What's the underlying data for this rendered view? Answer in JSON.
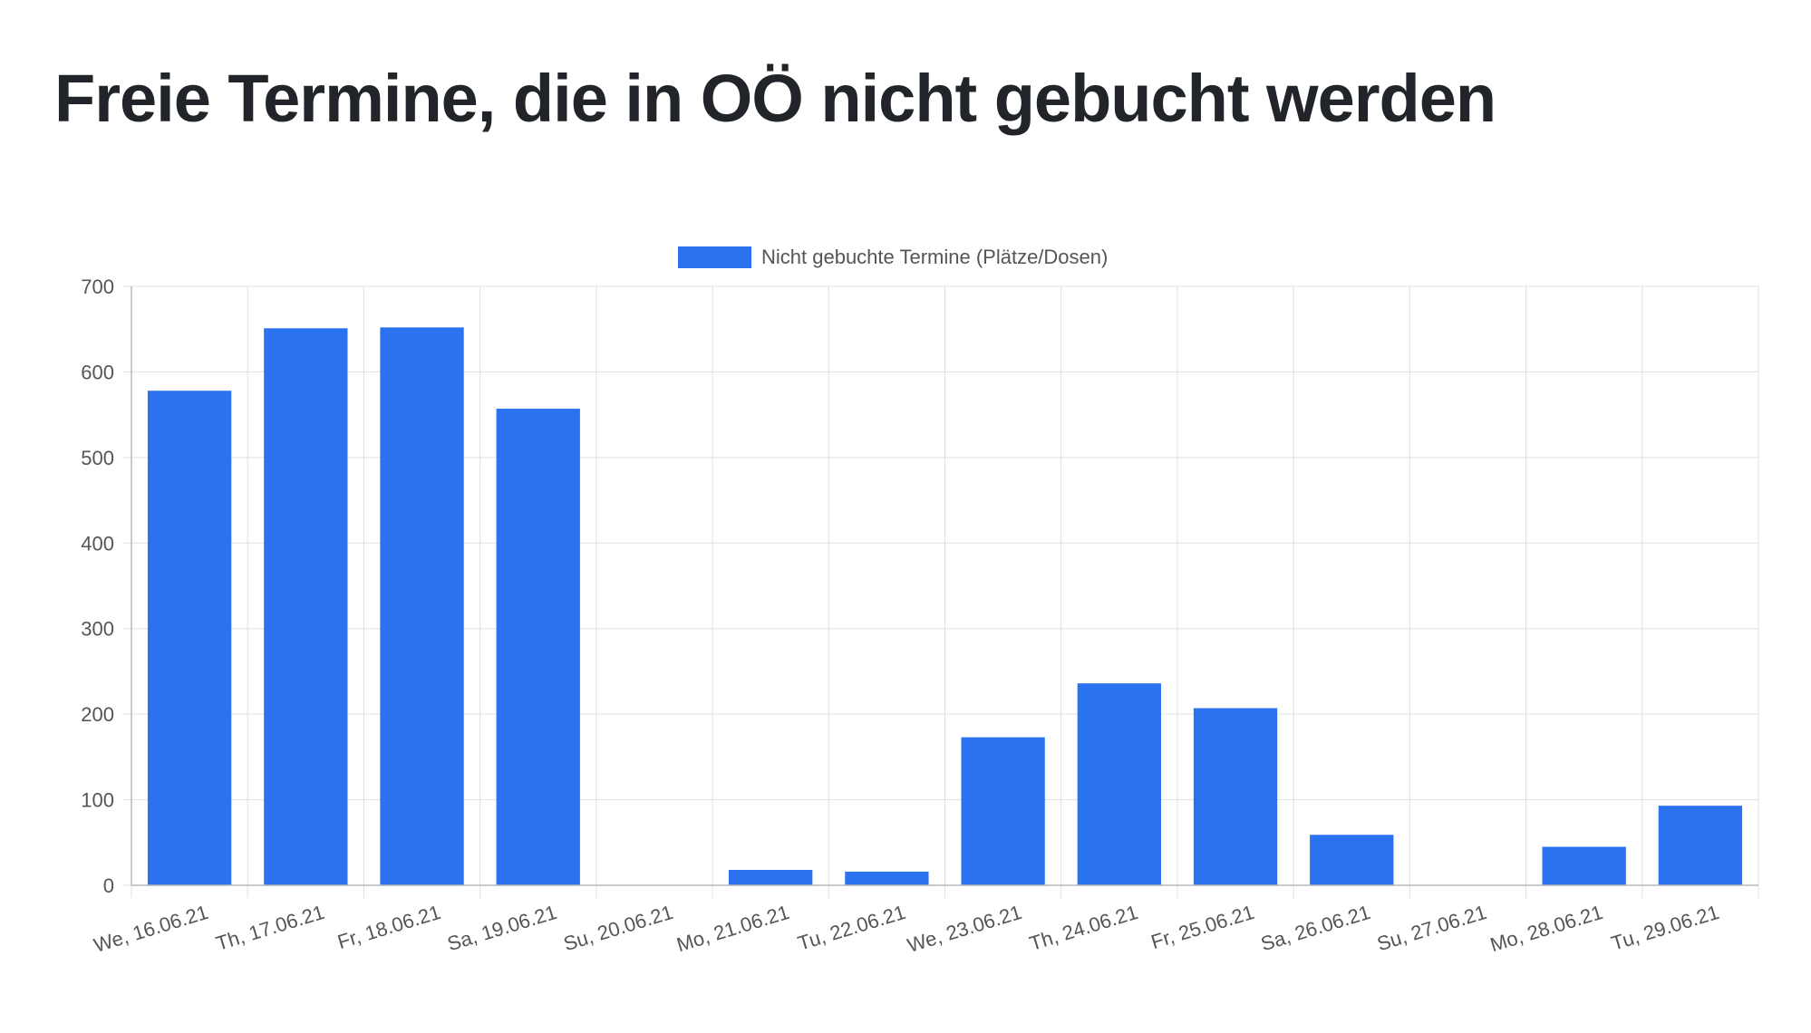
{
  "page": {
    "title": "Freie Termine, die in OÖ nicht gebucht werden"
  },
  "colors": {
    "bar": "#2b72f0",
    "grid": "#e0e0e0",
    "axis": "#b8b8b8",
    "text": "#555555",
    "title": "#212529"
  },
  "chart_data": {
    "type": "bar",
    "title": "",
    "xlabel": "",
    "ylabel": "",
    "categories": [
      "We, 16.06.21",
      "Th, 17.06.21",
      "Fr, 18.06.21",
      "Sa, 19.06.21",
      "Su, 20.06.21",
      "Mo, 21.06.21",
      "Tu, 22.06.21",
      "We, 23.06.21",
      "Th, 24.06.21",
      "Fr, 25.06.21",
      "Sa, 26.06.21",
      "Su, 27.06.21",
      "Mo, 28.06.21",
      "Tu, 29.06.21"
    ],
    "series": [
      {
        "name": "Nicht gebuchte Termine (Plätze/Dosen)",
        "values": [
          578,
          651,
          652,
          557,
          0,
          18,
          16,
          173,
          236,
          207,
          59,
          0,
          45,
          93
        ]
      }
    ],
    "ylim": [
      0,
      700
    ],
    "yticks": [
      0,
      100,
      200,
      300,
      400,
      500,
      600,
      700
    ],
    "grid": true,
    "legend_position": "top-center"
  }
}
